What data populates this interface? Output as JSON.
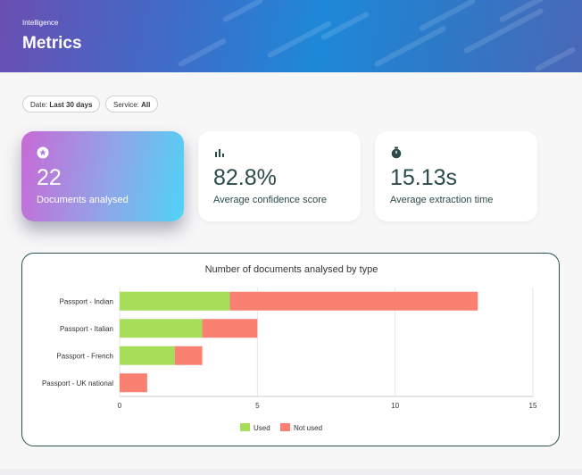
{
  "header": {
    "eyebrow": "Intelligence",
    "title": "Metrics"
  },
  "filters": [
    {
      "label": "Date:",
      "value": "Last 30 days"
    },
    {
      "label": "Service:",
      "value": "All"
    }
  ],
  "stats": [
    {
      "icon": "star-circle-icon",
      "value": "22",
      "label": "Documents analysed"
    },
    {
      "icon": "bar-chart-icon",
      "value": "82.8%",
      "label": "Average confidence score"
    },
    {
      "icon": "stopwatch-icon",
      "value": "15.13s",
      "label": "Average extraction time"
    }
  ],
  "colors": {
    "used": "#a6de5a",
    "not_used": "#fa8072",
    "accent_dark": "#2b4a4a"
  },
  "chart_data": {
    "type": "bar",
    "orientation": "horizontal",
    "stacked": true,
    "title": "Number of documents analysed by type",
    "categories": [
      "Passport - Indian",
      "Passport - Italian",
      "Passport - French",
      "Passport - UK national"
    ],
    "series": [
      {
        "name": "Used",
        "values": [
          4,
          3,
          2,
          0
        ]
      },
      {
        "name": "Not used",
        "values": [
          9,
          2,
          1,
          1
        ]
      }
    ],
    "xlim": [
      0,
      15
    ],
    "xticks": [
      0,
      5,
      10,
      15
    ],
    "grid": true,
    "legend": "bottom"
  }
}
